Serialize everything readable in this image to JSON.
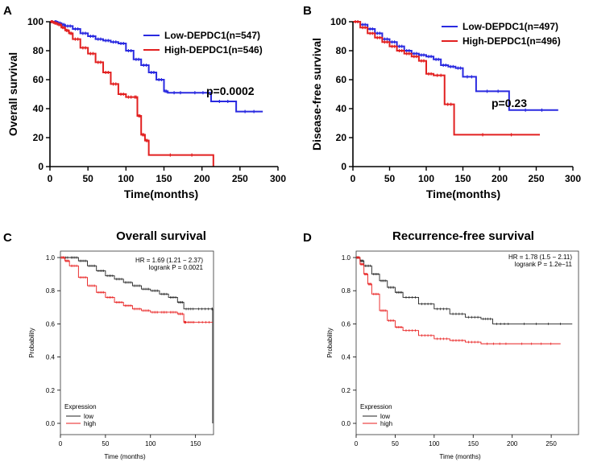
{
  "chart_data": [
    {
      "panel": "A",
      "type": "line",
      "style": "bold",
      "title": "",
      "xlabel": "Time(months)",
      "ylabel": "Overall survival",
      "xlim": [
        0,
        300
      ],
      "ylim": [
        0,
        100
      ],
      "xticks": [
        0,
        50,
        100,
        150,
        200,
        250,
        300
      ],
      "yticks": [
        0,
        20,
        40,
        60,
        80,
        100
      ],
      "legend_position": "top-right",
      "annotation": "p=0.0002",
      "series": [
        {
          "name": "Low-DEPDC1(n=547)",
          "color": "#2a2ae0",
          "x": [
            0,
            5,
            10,
            15,
            20,
            30,
            40,
            50,
            60,
            70,
            80,
            90,
            100,
            110,
            120,
            130,
            140,
            150,
            155,
            180,
            212,
            245,
            280
          ],
          "y": [
            100,
            100,
            99,
            98,
            97,
            95,
            92,
            90,
            88,
            87,
            86,
            85,
            80,
            74,
            70,
            65,
            60,
            52,
            51,
            51,
            45,
            38,
            38
          ]
        },
        {
          "name": "High-DEPDC1(n=546)",
          "color": "#e22020",
          "x": [
            0,
            5,
            10,
            15,
            20,
            25,
            30,
            40,
            50,
            60,
            70,
            80,
            90,
            100,
            110,
            115,
            120,
            125,
            130,
            215
          ],
          "y": [
            100,
            99,
            98,
            96,
            94,
            92,
            88,
            82,
            78,
            72,
            65,
            57,
            50,
            48,
            48,
            35,
            22,
            18,
            8,
            0
          ]
        }
      ]
    },
    {
      "panel": "B",
      "type": "line",
      "style": "bold",
      "title": "",
      "xlabel": "Time(months)",
      "ylabel": "Disease-free survival",
      "xlim": [
        0,
        300
      ],
      "ylim": [
        0,
        100
      ],
      "xticks": [
        0,
        50,
        100,
        150,
        200,
        250,
        300
      ],
      "yticks": [
        0,
        20,
        40,
        60,
        80,
        100
      ],
      "legend_position": "top-right",
      "annotation": "p=0.23",
      "series": [
        {
          "name": "Low-DEPDC1(n=497)",
          "color": "#2a2ae0",
          "x": [
            0,
            10,
            20,
            30,
            40,
            50,
            60,
            70,
            80,
            90,
            100,
            110,
            120,
            130,
            140,
            150,
            168,
            213,
            280
          ],
          "y": [
            100,
            98,
            95,
            92,
            88,
            86,
            83,
            80,
            78,
            77,
            76,
            74,
            70,
            69,
            68,
            62,
            52,
            39,
            39
          ]
        },
        {
          "name": "High-DEPDC1(n=496)",
          "color": "#e22020",
          "x": [
            0,
            10,
            20,
            30,
            40,
            50,
            60,
            70,
            80,
            90,
            100,
            110,
            125,
            138,
            255
          ],
          "y": [
            100,
            96,
            92,
            89,
            86,
            83,
            80,
            78,
            76,
            73,
            64,
            63,
            43,
            22,
            22
          ]
        }
      ]
    },
    {
      "panel": "C",
      "type": "line",
      "style": "thin",
      "title": "Overall survival",
      "xlabel": "Time (months)",
      "ylabel": "Probability",
      "xlim": [
        0,
        170
      ],
      "ylim": [
        0,
        1
      ],
      "xticks": [
        0,
        50,
        100,
        150
      ],
      "yticks": [
        0.0,
        0.2,
        0.4,
        0.6,
        0.8,
        1.0
      ],
      "ytick_labels": [
        "0.0",
        "0.2",
        "0.4",
        "0.6",
        "0.8",
        "1.0"
      ],
      "stats": [
        "HR = 1.69 (1.21 − 2.37)",
        "logrank P = 0.0021"
      ],
      "legend_title": "Expression",
      "legend_position": "bottom-left",
      "series": [
        {
          "name": "low",
          "color": "#222222",
          "x": [
            0,
            10,
            20,
            30,
            40,
            50,
            60,
            70,
            80,
            90,
            100,
            110,
            120,
            130,
            137,
            150,
            168,
            169
          ],
          "y": [
            1.0,
            1.0,
            0.98,
            0.95,
            0.92,
            0.89,
            0.87,
            0.85,
            0.83,
            0.81,
            0.8,
            0.78,
            0.76,
            0.73,
            0.69,
            0.69,
            0.69,
            0.0
          ]
        },
        {
          "name": "high",
          "color": "#e81c1c",
          "x": [
            0,
            5,
            10,
            20,
            30,
            40,
            50,
            60,
            70,
            80,
            90,
            100,
            110,
            120,
            130,
            137,
            140,
            150,
            169
          ],
          "y": [
            1.0,
            0.98,
            0.95,
            0.88,
            0.83,
            0.79,
            0.76,
            0.73,
            0.71,
            0.69,
            0.68,
            0.67,
            0.67,
            0.67,
            0.66,
            0.61,
            0.61,
            0.61,
            0.61
          ]
        }
      ]
    },
    {
      "panel": "D",
      "type": "line",
      "style": "thin",
      "title": "Recurrence-free survival",
      "xlabel": "Time (months)",
      "ylabel": "Probability",
      "xlim": [
        0,
        285
      ],
      "ylim": [
        0,
        1
      ],
      "xticks": [
        0,
        50,
        100,
        150,
        200,
        250
      ],
      "yticks": [
        0.0,
        0.2,
        0.4,
        0.6,
        0.8,
        1.0
      ],
      "ytick_labels": [
        "0.0",
        "0.2",
        "0.4",
        "0.6",
        "0.8",
        "1.0"
      ],
      "stats": [
        "HR = 1.78 (1.5 − 2.11)",
        "logrank P = 1.2e−11"
      ],
      "legend_title": "Expression",
      "legend_position": "bottom-left",
      "series": [
        {
          "name": "low",
          "color": "#222222",
          "x": [
            0,
            5,
            10,
            20,
            30,
            40,
            50,
            60,
            80,
            100,
            120,
            140,
            160,
            175,
            200,
            277
          ],
          "y": [
            1.0,
            0.98,
            0.95,
            0.9,
            0.86,
            0.82,
            0.79,
            0.76,
            0.72,
            0.69,
            0.66,
            0.64,
            0.63,
            0.6,
            0.6,
            0.6
          ]
        },
        {
          "name": "high",
          "color": "#e81c1c",
          "x": [
            0,
            5,
            10,
            15,
            20,
            30,
            40,
            50,
            60,
            80,
            100,
            120,
            140,
            160,
            200,
            262
          ],
          "y": [
            1.0,
            0.96,
            0.9,
            0.84,
            0.78,
            0.68,
            0.62,
            0.58,
            0.56,
            0.53,
            0.51,
            0.5,
            0.49,
            0.48,
            0.48,
            0.48
          ]
        }
      ]
    }
  ]
}
